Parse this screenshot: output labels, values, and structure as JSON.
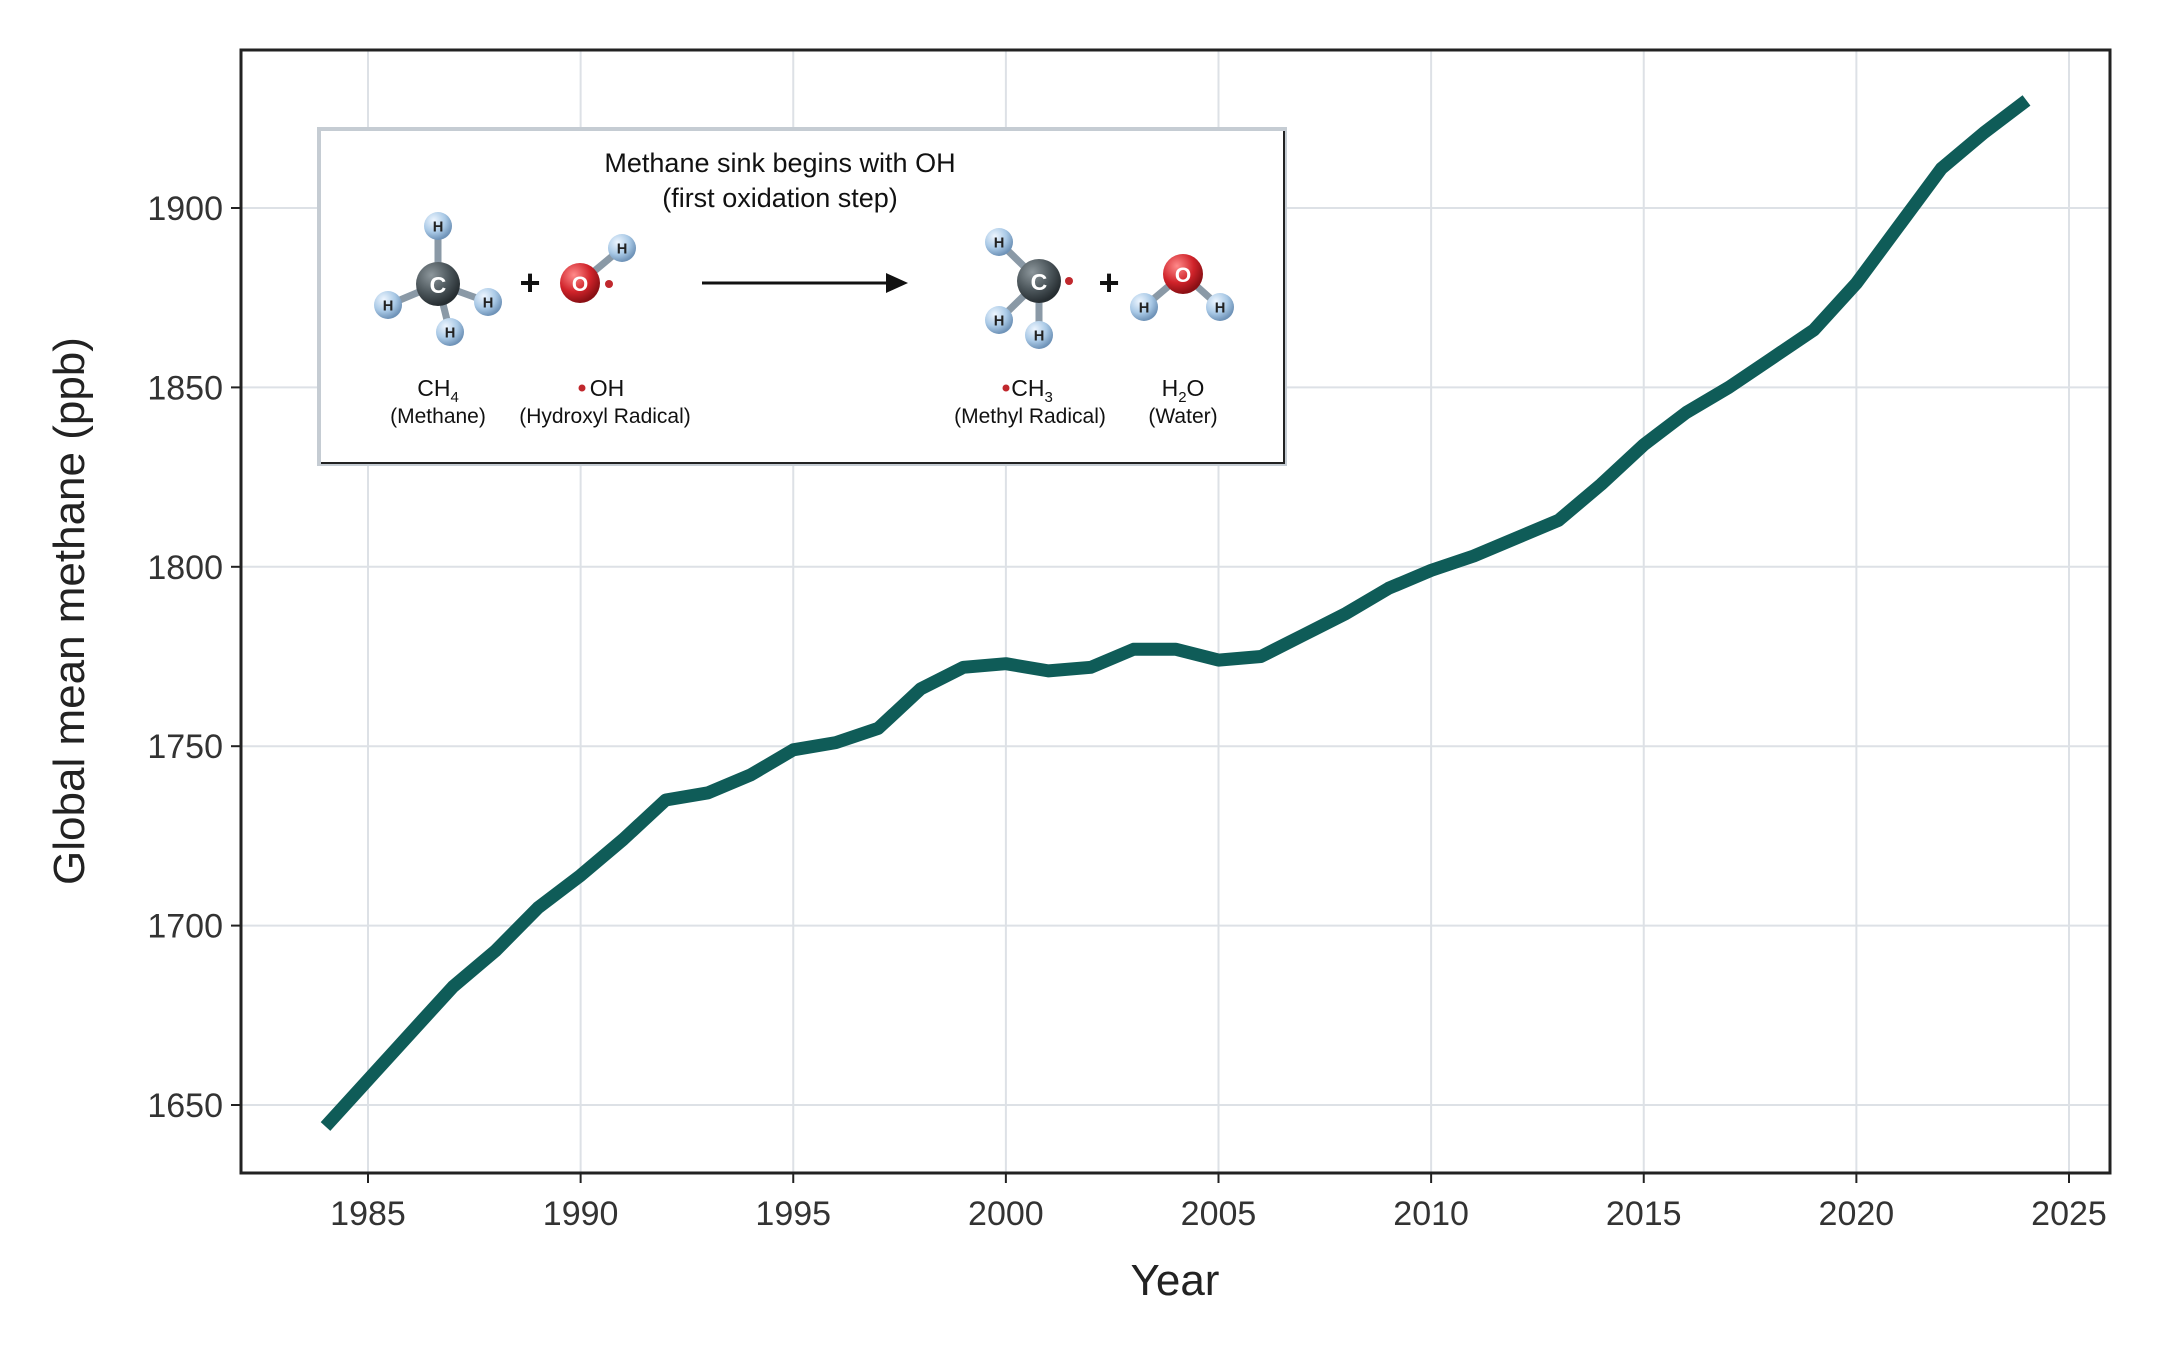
{
  "chart_data": {
    "type": "line",
    "title": "",
    "xlabel": "Year",
    "ylabel": "Global mean methane (ppb)",
    "xlim": [
      1982,
      2026
    ],
    "ylim": [
      1632,
      1943
    ],
    "xticks": [
      1985,
      1990,
      1995,
      2000,
      2005,
      2010,
      2015,
      2020,
      2025
    ],
    "yticks": [
      1650,
      1700,
      1750,
      1800,
      1850,
      1900
    ],
    "grid": true,
    "line_color": "#0f5c58",
    "x": [
      1984,
      1985,
      1986,
      1987,
      1988,
      1989,
      1990,
      1991,
      1992,
      1993,
      1994,
      1995,
      1996,
      1997,
      1998,
      1999,
      2000,
      2001,
      2002,
      2003,
      2004,
      2005,
      2006,
      2007,
      2008,
      2009,
      2010,
      2011,
      2012,
      2013,
      2014,
      2015,
      2016,
      2017,
      2018,
      2019,
      2020,
      2021,
      2022,
      2023,
      2024
    ],
    "y": [
      1644,
      1657,
      1670,
      1683,
      1693,
      1705,
      1714,
      1724,
      1735,
      1737,
      1742,
      1749,
      1751,
      1755,
      1766,
      1772,
      1773,
      1771,
      1772,
      1777,
      1777,
      1774,
      1775,
      1781,
      1787,
      1794,
      1799,
      1803,
      1808,
      1813,
      1823,
      1834,
      1843,
      1850,
      1858,
      1866,
      1879,
      1895,
      1911,
      1921,
      1930
    ]
  },
  "inset": {
    "title_line1": "Methane sink begins with OH",
    "title_line2": "(first oxidation step)",
    "plus": "+",
    "atom_h": "H",
    "atom_c": "C",
    "atom_o": "O",
    "radical_dot_color": "#c0282d",
    "molecules": [
      {
        "formula": "CH",
        "sub": "4",
        "suffix": "",
        "name": "(Methane)",
        "radical": false
      },
      {
        "formula": "OH",
        "sub": "",
        "suffix": "",
        "name": "(Hydroxyl Radical)",
        "radical": true
      },
      {
        "formula": "CH",
        "sub": "3",
        "suffix": "",
        "name": "(Methyl Radical)",
        "radical": true
      },
      {
        "formula": "H",
        "sub": "2",
        "suffix": "O",
        "name": "(Water)",
        "radical": false
      }
    ]
  }
}
